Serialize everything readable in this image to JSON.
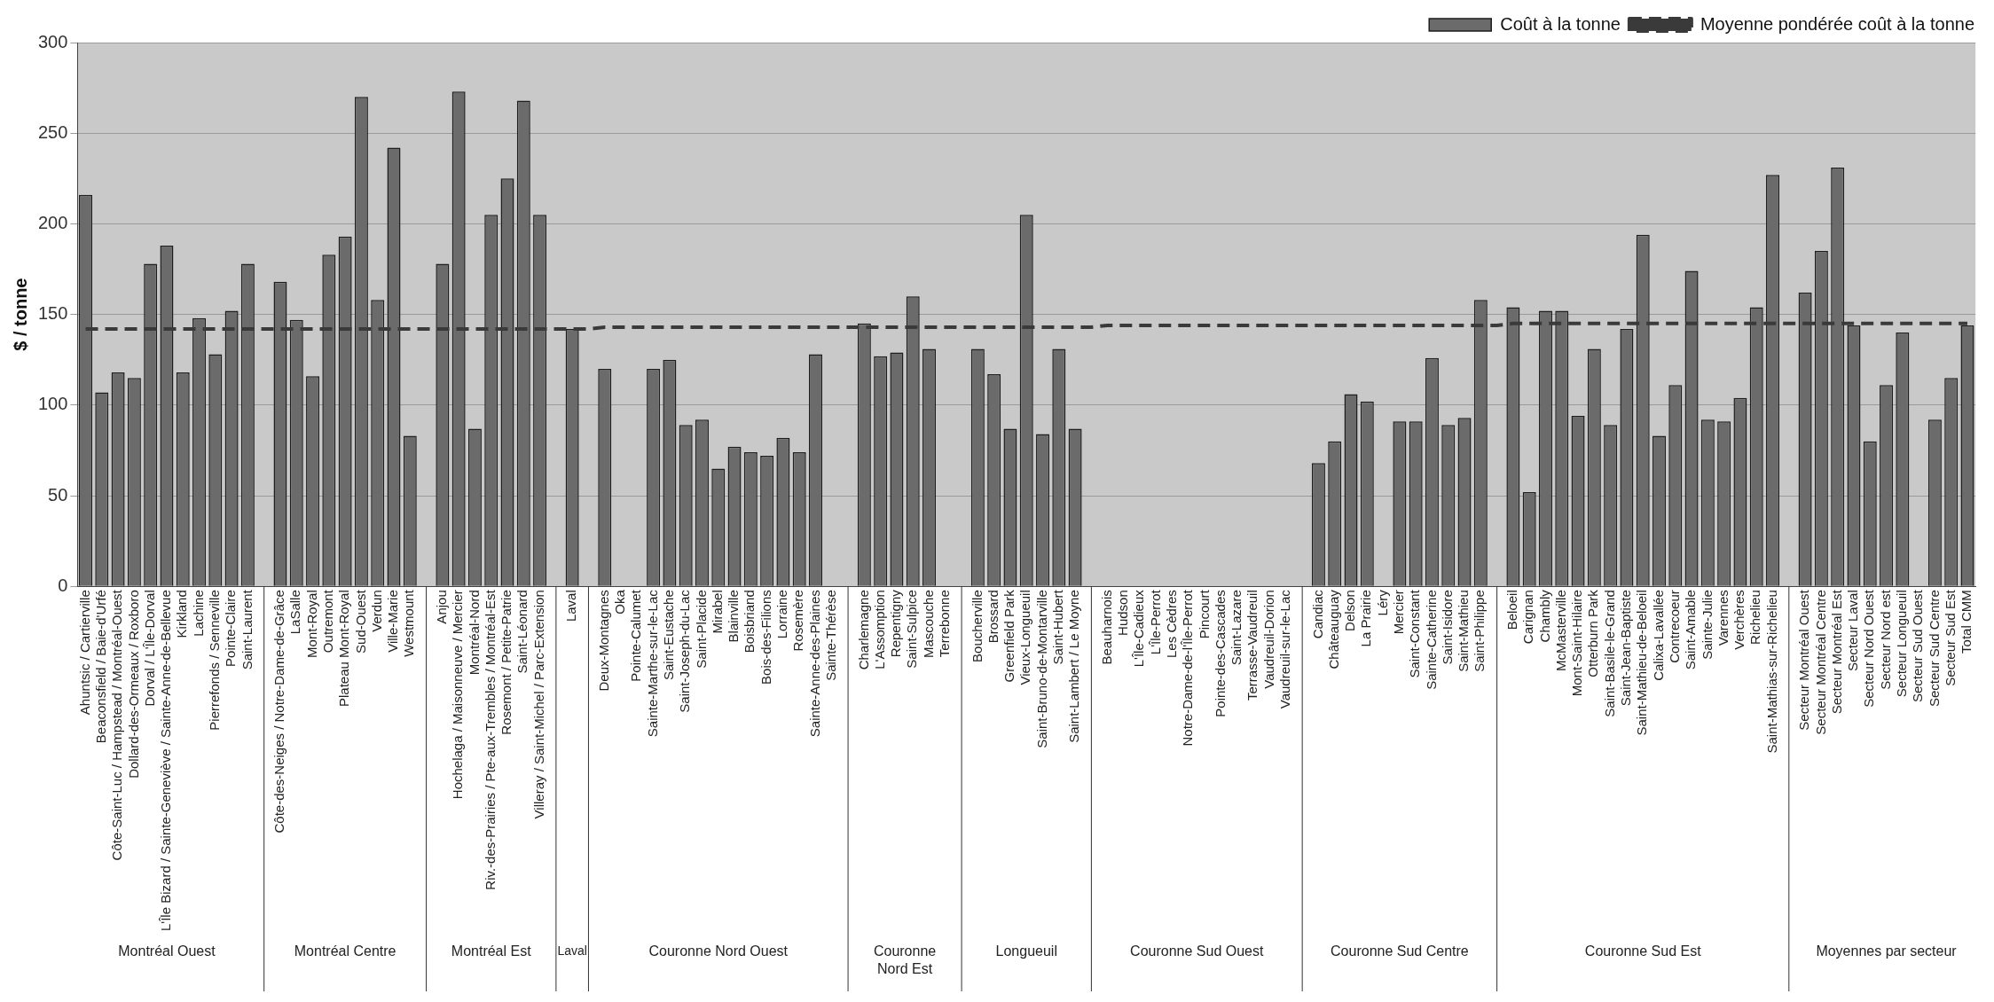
{
  "chart_data": {
    "type": "bar",
    "ylabel": "$ / tonne",
    "ylim": [
      0,
      300
    ],
    "yticks": [
      0,
      50,
      100,
      150,
      200,
      250,
      300
    ],
    "grid": "y",
    "legend": "top right",
    "tick_labels": true,
    "categories": [
      "Ahuntsic / Cartierville",
      "Beaconsfield / Baie-d'Urfé",
      "Côte-Saint-Luc / Hampstead / Montréal-Ouest",
      "Dollard-des-Ormeaux / Roxboro",
      "Dorval / L'Île-Dorval",
      "L'Île Bizard / Sainte-Geneviève / Sainte-Anne-de-Bellevue",
      "Kirkland",
      "Lachine",
      "Pierrefonds / Senneville",
      "Pointe-Claire",
      "Saint-Laurent",
      null,
      "Côte-des-Neiges / Notre-Dame-de-Grâce",
      "LaSalle",
      "Mont-Royal",
      "Outremont",
      "Plateau Mont-Royal",
      "Sud-Ouest",
      "Verdun",
      "Ville-Marie",
      "Westmount",
      null,
      "Anjou",
      "Hochelaga / Maisonneuve / Mercier",
      "Montréal-Nord",
      "Riv.-des-Prairies / Pte-aux-Trembles / Montréal-Est",
      "Rosemont / Petite-Patrie",
      "Saint-Léonard",
      "Villeray / Saint-Michel / Parc-Extension",
      null,
      "Laval",
      null,
      "Deux-Montagnes",
      "Oka",
      "Pointe-Calumet",
      "Sainte-Marthe-sur-le-Lac",
      "Saint-Eustache",
      "Saint-Joseph-du-Lac",
      "Saint-Placide",
      "Mirabel",
      "Blainville",
      "Boisbriand",
      "Bois-des-Filions",
      "Lorraine",
      "Rosemère",
      "Sainte-Anne-des-Plaines",
      "Sainte-Thérèse",
      null,
      "Charlemagne",
      "L'Assomption",
      "Repentigny",
      "Saint-Sulpice",
      "Mascouche",
      "Terrebonne",
      null,
      "Boucherville",
      "Brossard",
      "Greenfield Park",
      "Vieux-Longueuil",
      "Saint-Bruno-de-Montarville",
      "Saint-Hubert",
      "Saint-Lambert / Le Moyne",
      null,
      "Beauharnois",
      "Hudson",
      "L'Île-Cadieux",
      "L'Île-Perrot",
      "Les Cèdres",
      "Notre-Dame-de-l'Île-Perrot",
      "Pincourt",
      "Pointe-des-Cascades",
      "Saint-Lazare",
      "Terrasse-Vaudreuil",
      "Vaudreuil-Dorion",
      "Vaudreuil-sur-le-Lac",
      null,
      "Candiac",
      "Châteauguay",
      "Delson",
      "La Prairie",
      "Léry",
      "Mercier",
      "Saint-Constant",
      "Sainte-Catherine",
      "Saint-Isidore",
      "Saint-Mathieu",
      "Saint-Philippe",
      null,
      "Beloeil",
      "Carignan",
      "Chambly",
      "McMasterville",
      "Mont-Saint-Hilaire",
      "Otterburn Park",
      "Saint-Basile-le-Grand",
      "Saint-Jean-Baptiste",
      "Saint-Mathieu-de-Beloeil",
      "Calixa-Lavallée",
      "Contrecoeur",
      "Saint-Amable",
      "Sainte-Julie",
      "Varennes",
      "Verchères",
      "Richelieu",
      "Saint-Mathias-sur-Richelieu",
      null,
      "Secteur Montréal Ouest",
      "Secteur Montréal Centre",
      "Secteur Montréal Est",
      "Secteur Laval",
      "Secteur Nord Ouest",
      "Secteur Nord est",
      "Secteur Longueuil",
      "Secteur Sud Ouest",
      "Secteur Sud Centre",
      "Secteur Sud Est",
      "Total CMM"
    ],
    "series": [
      {
        "name": "Coût à la tonne",
        "color": "#6b6b6b",
        "values": [
          216,
          107,
          118,
          115,
          178,
          188,
          118,
          148,
          128,
          152,
          178,
          null,
          168,
          147,
          116,
          183,
          193,
          270,
          158,
          242,
          83,
          null,
          178,
          273,
          87,
          205,
          225,
          268,
          205,
          null,
          142,
          null,
          120,
          null,
          null,
          120,
          125,
          89,
          92,
          65,
          77,
          74,
          72,
          82,
          74,
          128,
          null,
          null,
          145,
          127,
          129,
          160,
          131,
          null,
          null,
          131,
          117,
          87,
          205,
          84,
          131,
          87,
          null,
          null,
          null,
          null,
          null,
          null,
          null,
          null,
          null,
          null,
          null,
          null,
          null,
          null,
          68,
          80,
          106,
          102,
          null,
          91,
          91,
          126,
          89,
          93,
          158,
          null,
          154,
          52,
          152,
          152,
          94,
          131,
          89,
          142,
          194,
          83,
          111,
          174,
          92,
          91,
          104,
          154,
          227,
          null,
          162,
          185,
          231,
          144,
          80,
          111,
          140,
          null,
          92,
          115,
          144
        ]
      },
      {
        "name": "Moyenne pondérée coût à la tonne",
        "type": "line",
        "color": "#3a3a3a",
        "line_style": "dashed",
        "marker": "none",
        "values": [
          142,
          142,
          142,
          142,
          142,
          142,
          142,
          142,
          142,
          142,
          142,
          142,
          142,
          142,
          142,
          142,
          142,
          142,
          142,
          142,
          142,
          142,
          142,
          142,
          142,
          142,
          142,
          142,
          142,
          142,
          142,
          142,
          143,
          143,
          143,
          143,
          143,
          143,
          143,
          143,
          143,
          143,
          143,
          143,
          143,
          143,
          143,
          143,
          143,
          143,
          143,
          143,
          143,
          143,
          143,
          143,
          143,
          143,
          143,
          143,
          143,
          143,
          143,
          144,
          144,
          144,
          144,
          144,
          144,
          144,
          144,
          144,
          144,
          144,
          144,
          144,
          144,
          144,
          144,
          144,
          144,
          144,
          144,
          144,
          144,
          144,
          144,
          144,
          145,
          145,
          145,
          145,
          145,
          145,
          145,
          145,
          145,
          145,
          145,
          145,
          145,
          145,
          145,
          145,
          145,
          145,
          145,
          145,
          145,
          145,
          145,
          145,
          145,
          145,
          145,
          145,
          145
        ]
      }
    ],
    "annotations": [
      "Montréal Ouest",
      "Montréal Centre",
      "Montréal Est",
      "Laval",
      "Couronne Nord Ouest",
      "Couronne Nord Est",
      "Longueuil",
      "Couronne Sud Ouest",
      "Couronne Sud Centre",
      "Couronne Sud Est",
      "Moyennes par secteur"
    ]
  }
}
